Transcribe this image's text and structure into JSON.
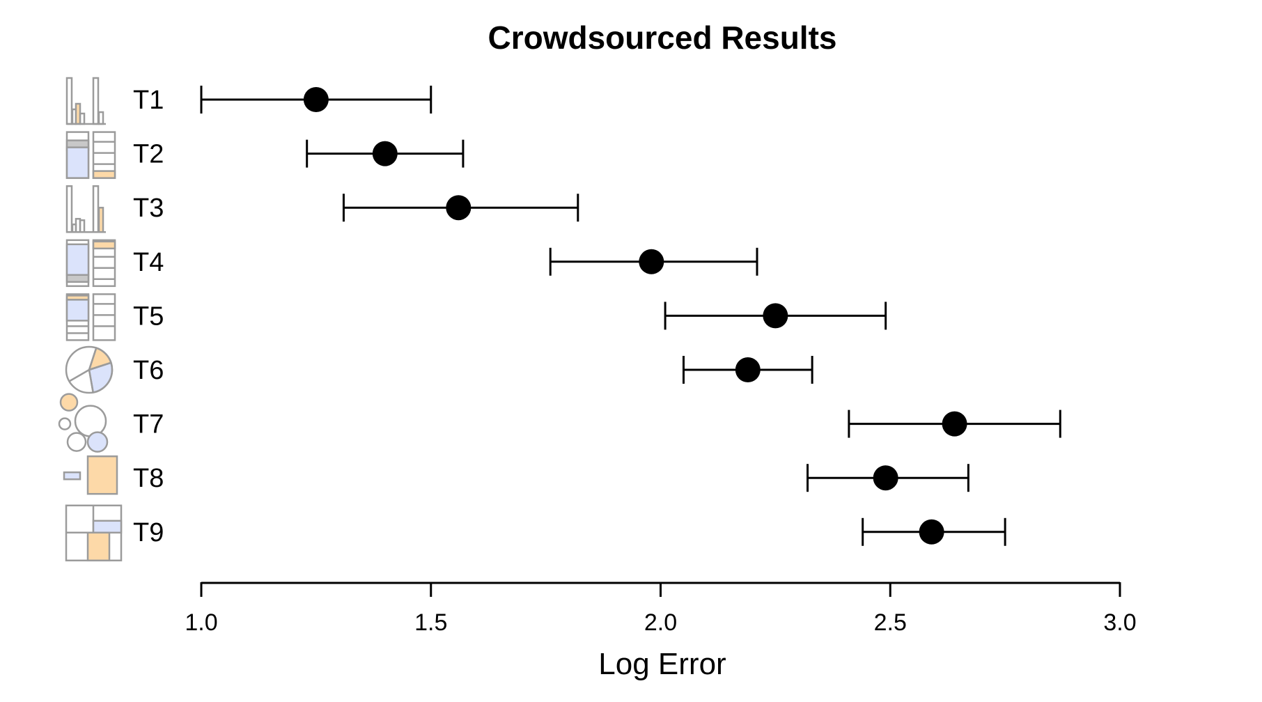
{
  "chart_data": {
    "type": "scatter",
    "title": "Crowdsourced Results",
    "xlabel": "Log Error",
    "ylabel": "",
    "xlim": [
      1.0,
      3.0
    ],
    "xticks": [
      "1.0",
      "1.5",
      "2.0",
      "2.5",
      "3.0"
    ],
    "grid": false,
    "error_bars": true,
    "categories": [
      "T1",
      "T2",
      "T3",
      "T4",
      "T5",
      "T6",
      "T7",
      "T8",
      "T9"
    ],
    "series": [
      {
        "values": [
          1.25,
          1.4,
          1.56,
          1.98,
          2.25,
          2.19,
          2.64,
          2.49,
          2.59
        ],
        "ci_low": [
          1.0,
          1.23,
          1.31,
          1.76,
          2.01,
          2.05,
          2.41,
          2.32,
          2.44
        ],
        "ci_high": [
          1.5,
          1.57,
          1.82,
          2.21,
          2.49,
          2.33,
          2.87,
          2.67,
          2.75
        ]
      }
    ],
    "row_icons": [
      "bar-chart-icon",
      "stacked-bar-icon",
      "bar-chart-icon",
      "stacked-bar-icon",
      "stacked-bar-icon",
      "pie-chart-icon",
      "bubble-chart-icon",
      "area-comparison-icon",
      "treemap-icon"
    ],
    "colors": {
      "marker": "#000000",
      "icon_stroke": "#9b9b9b",
      "icon_orange": "#fdd9a8",
      "icon_blue": "#dbe3fb"
    }
  }
}
